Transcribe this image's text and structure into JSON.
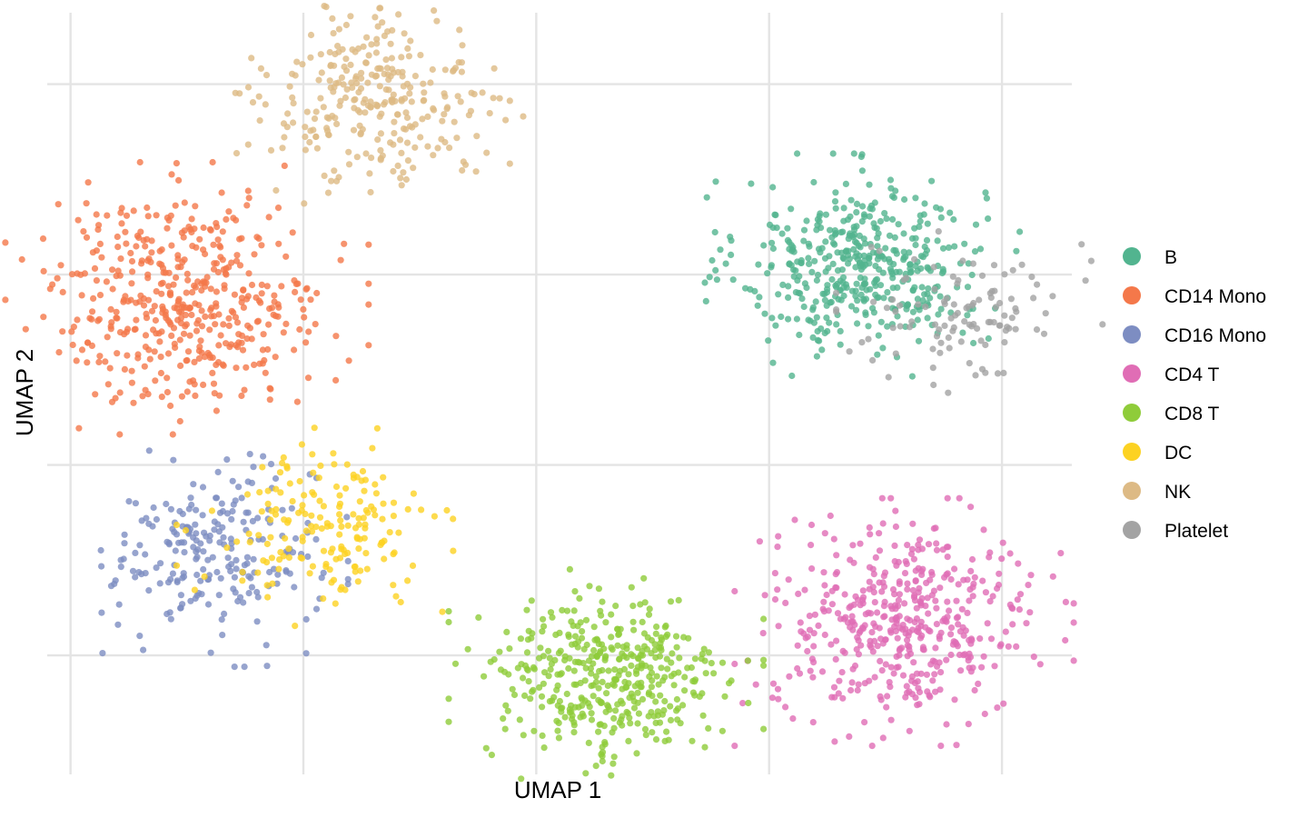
{
  "chart_data": {
    "type": "scatter",
    "title": "",
    "xlabel": "UMAP 1",
    "ylabel": "UMAP 2",
    "xlim": [
      -7.5,
      14.5
    ],
    "ylim": [
      -8.5,
      7.5
    ],
    "x_gridlines": [
      -7,
      -2,
      3,
      8,
      13
    ],
    "y_gridlines": [
      -6,
      -2,
      2,
      6
    ],
    "tick_labels_shown": false,
    "grid": true,
    "legend_position": "right",
    "marker": "circle",
    "point_opacity": 0.8,
    "series": [
      {
        "name": "B",
        "color": "#52B48F",
        "center": [
          10.0,
          2.2
        ],
        "spread": [
          1.3,
          0.9
        ],
        "n_points": 440
      },
      {
        "name": "CD14 Mono",
        "color": "#F4784A",
        "center": [
          -4.5,
          1.5
        ],
        "spread": [
          1.5,
          1.1
        ],
        "n_points": 460
      },
      {
        "name": "CD16 Mono",
        "color": "#7D8DC2",
        "center": [
          -3.9,
          -3.9
        ],
        "spread": [
          1.1,
          0.9
        ],
        "n_points": 230
      },
      {
        "name": "CD4 T",
        "color": "#E06DB5",
        "center": [
          10.9,
          -5.3
        ],
        "spread": [
          1.4,
          1.0
        ],
        "n_points": 460
      },
      {
        "name": "CD8 T",
        "color": "#8FCC3A",
        "center": [
          4.5,
          -6.5
        ],
        "spread": [
          1.3,
          0.9
        ],
        "n_points": 420
      },
      {
        "name": "DC",
        "color": "#FCD222",
        "center": [
          -1.6,
          -3.3
        ],
        "spread": [
          1.2,
          0.8
        ],
        "n_points": 180
      },
      {
        "name": "NK",
        "color": "#DDBA85",
        "center": [
          -0.4,
          5.7
        ],
        "spread": [
          1.2,
          0.9
        ],
        "n_points": 290
      },
      {
        "name": "Platelet",
        "color": "#A3A3A3",
        "center": [
          12.3,
          1.2
        ],
        "spread": [
          1.1,
          0.7
        ],
        "n_points": 110
      }
    ]
  }
}
